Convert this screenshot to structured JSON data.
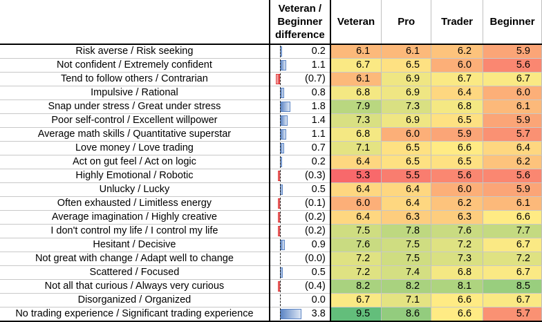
{
  "headers": {
    "difference": [
      "Veteran /",
      "Beginner",
      "difference"
    ],
    "columns": [
      "Veteran",
      "Pro",
      "Trader",
      "Beginner"
    ]
  },
  "rows": [
    {
      "label": "Risk averse / Risk seeking",
      "diff": 0.2,
      "diff_text": "0.2",
      "values": [
        "6.1",
        "6.1",
        "6.2",
        "5.9"
      ]
    },
    {
      "label": "Not confident / Extremely confident",
      "diff": 1.1,
      "diff_text": "1.1",
      "values": [
        "6.7",
        "6.5",
        "6.0",
        "5.6"
      ]
    },
    {
      "label": "Tend to follow others / Contrarian",
      "diff": -0.7,
      "diff_text": "(0.7)",
      "values": [
        "6.1",
        "6.9",
        "6.7",
        "6.7"
      ]
    },
    {
      "label": "Impulsive / Rational",
      "diff": 0.8,
      "diff_text": "0.8",
      "values": [
        "6.8",
        "6.9",
        "6.4",
        "6.0"
      ]
    },
    {
      "label": "Snap under stress / Great under stress",
      "diff": 1.8,
      "diff_text": "1.8",
      "values": [
        "7.9",
        "7.3",
        "6.8",
        "6.1"
      ]
    },
    {
      "label": "Poor self-control / Excellent willpower",
      "diff": 1.4,
      "diff_text": "1.4",
      "values": [
        "7.3",
        "6.9",
        "6.5",
        "5.9"
      ]
    },
    {
      "label": "Average math skills / Quantitative superstar",
      "diff": 1.1,
      "diff_text": "1.1",
      "values": [
        "6.8",
        "6.0",
        "5.9",
        "5.7"
      ]
    },
    {
      "label": "Love money / Love trading",
      "diff": 0.7,
      "diff_text": "0.7",
      "values": [
        "7.1",
        "6.5",
        "6.6",
        "6.4"
      ]
    },
    {
      "label": "Act on gut feel / Act on logic",
      "diff": 0.2,
      "diff_text": "0.2",
      "values": [
        "6.4",
        "6.5",
        "6.5",
        "6.2"
      ]
    },
    {
      "label": "Highly Emotional / Robotic",
      "diff": -0.3,
      "diff_text": "(0.3)",
      "values": [
        "5.3",
        "5.5",
        "5.6",
        "5.6"
      ]
    },
    {
      "label": "Unlucky / Lucky",
      "diff": 0.5,
      "diff_text": "0.5",
      "values": [
        "6.4",
        "6.4",
        "6.0",
        "5.9"
      ]
    },
    {
      "label": "Often exhausted / Limitless energy",
      "diff": -0.1,
      "diff_text": "(0.1)",
      "values": [
        "6.0",
        "6.4",
        "6.2",
        "6.1"
      ]
    },
    {
      "label": "Average imagination / Highly creative",
      "diff": -0.2,
      "diff_text": "(0.2)",
      "values": [
        "6.4",
        "6.3",
        "6.3",
        "6.6"
      ]
    },
    {
      "label": "I don't control my life / I control my life",
      "diff": -0.2,
      "diff_text": "(0.2)",
      "values": [
        "7.5",
        "7.8",
        "7.6",
        "7.7"
      ]
    },
    {
      "label": "Hesitant / Decisive",
      "diff": 0.9,
      "diff_text": "0.9",
      "values": [
        "7.6",
        "7.5",
        "7.2",
        "6.7"
      ]
    },
    {
      "label": "Not great with change / Adapt well to change",
      "diff": -0.04,
      "diff_text": "(0.0)",
      "values": [
        "7.2",
        "7.5",
        "7.3",
        "7.2"
      ]
    },
    {
      "label": "Scattered / Focused",
      "diff": 0.5,
      "diff_text": "0.5",
      "values": [
        "7.2",
        "7.4",
        "6.8",
        "6.7"
      ]
    },
    {
      "label": "Not all that curious / Always very curious",
      "diff": -0.4,
      "diff_text": "(0.4)",
      "values": [
        "8.2",
        "8.2",
        "8.1",
        "8.5"
      ]
    },
    {
      "label": "Disorganized / Organized",
      "diff": 0.0,
      "diff_text": "0.0",
      "values": [
        "6.7",
        "7.1",
        "6.6",
        "6.7"
      ]
    },
    {
      "label": "No trading experience / Significant trading experience",
      "diff": 3.8,
      "diff_text": "3.8",
      "values": [
        "9.5",
        "8.6",
        "6.6",
        "5.7"
      ]
    }
  ],
  "colors": {
    "scale_low": "#f8696b",
    "scale_mid": "#ffeb84",
    "scale_high": "#63be7b",
    "bar_positive": "#5b84c4",
    "bar_negative": "#e23d3d"
  },
  "chart_data": {
    "type": "table",
    "categories": [
      "Risk averse / Risk seeking",
      "Not confident / Extremely confident",
      "Tend to follow others / Contrarian",
      "Impulsive / Rational",
      "Snap under stress / Great under stress",
      "Poor self-control / Excellent willpower",
      "Average math skills / Quantitative superstar",
      "Love money / Love trading",
      "Act on gut feel / Act on logic",
      "Highly Emotional / Robotic",
      "Unlucky / Lucky",
      "Often exhausted / Limitless energy",
      "Average imagination / Highly creative",
      "I don't control my life / I control my life",
      "Hesitant / Decisive",
      "Not great with change / Adapt well to change",
      "Scattered / Focused",
      "Not all that curious / Always very curious",
      "Disorganized / Organized",
      "No trading experience / Significant trading experience"
    ],
    "series": [
      {
        "name": "Veteran / Beginner difference",
        "values": [
          0.2,
          1.1,
          -0.7,
          0.8,
          1.8,
          1.4,
          1.1,
          0.7,
          0.2,
          -0.3,
          0.5,
          -0.1,
          -0.2,
          -0.2,
          0.9,
          -0.04,
          0.5,
          -0.4,
          0.0,
          3.8
        ]
      },
      {
        "name": "Veteran",
        "values": [
          6.1,
          6.7,
          6.1,
          6.8,
          7.9,
          7.3,
          6.8,
          7.1,
          6.4,
          5.3,
          6.4,
          6.0,
          6.4,
          7.5,
          7.6,
          7.2,
          7.2,
          8.2,
          6.7,
          9.5
        ]
      },
      {
        "name": "Pro",
        "values": [
          6.1,
          6.5,
          6.9,
          6.9,
          7.3,
          6.9,
          6.0,
          6.5,
          6.5,
          5.5,
          6.4,
          6.4,
          6.3,
          7.8,
          7.5,
          7.5,
          7.4,
          8.2,
          7.1,
          8.6
        ]
      },
      {
        "name": "Trader",
        "values": [
          6.2,
          6.0,
          6.7,
          6.4,
          6.8,
          6.5,
          5.9,
          6.6,
          6.5,
          5.6,
          6.0,
          6.2,
          6.3,
          7.6,
          7.2,
          7.3,
          6.8,
          8.1,
          6.6,
          6.6
        ]
      },
      {
        "name": "Beginner",
        "values": [
          5.9,
          5.6,
          6.7,
          6.0,
          6.1,
          5.9,
          5.7,
          6.4,
          6.2,
          5.6,
          5.9,
          6.1,
          6.6,
          7.7,
          6.7,
          7.2,
          6.7,
          8.5,
          6.7,
          5.7
        ]
      }
    ]
  }
}
